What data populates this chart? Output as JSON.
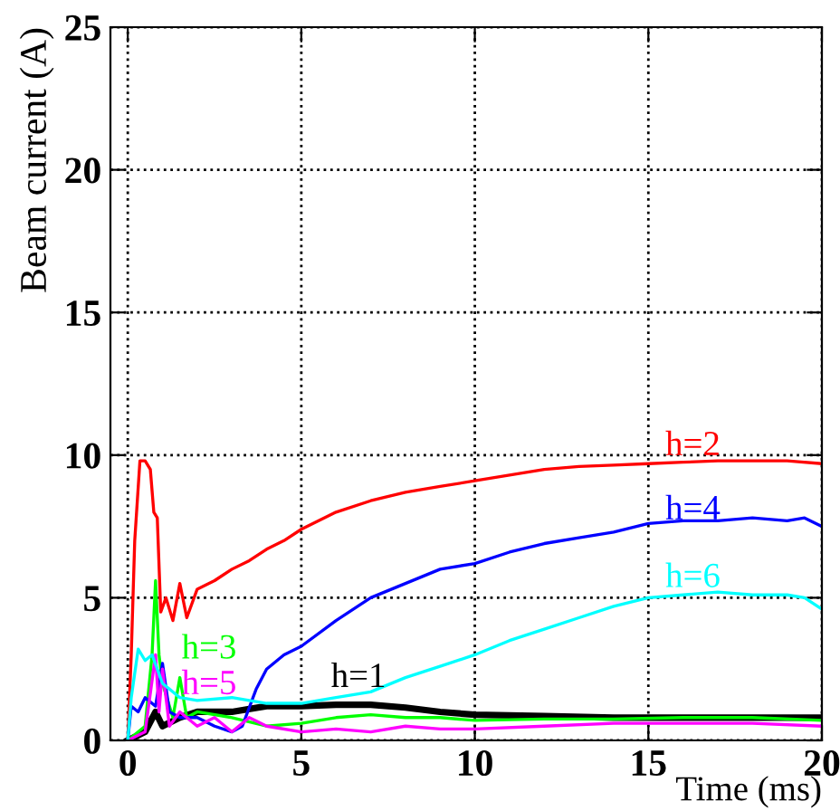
{
  "chart_data": {
    "type": "line",
    "xlabel": "Time (ms)",
    "ylabel": "Beam current (A)",
    "xlim": [
      -0.5,
      20
    ],
    "ylim": [
      0,
      25
    ],
    "xticks": [
      0,
      5,
      10,
      15,
      20
    ],
    "yticks": [
      0,
      5,
      10,
      15,
      20,
      25
    ],
    "grid": true,
    "legend": false,
    "marker": "none",
    "line_style": "solid",
    "series": [
      {
        "name": "h=1",
        "color": "#000000",
        "x": [
          0,
          0.5,
          0.8,
          1,
          1.5,
          2,
          3,
          4,
          5,
          6,
          7,
          8,
          9,
          10,
          12,
          14,
          16,
          18,
          20
        ],
        "values": [
          0,
          0.3,
          1,
          0.5,
          0.8,
          1,
          1,
          1.2,
          1.2,
          1.25,
          1.25,
          1.15,
          1,
          0.9,
          0.85,
          0.8,
          0.8,
          0.8,
          0.8
        ]
      },
      {
        "name": "h=2",
        "color": "#ff0000",
        "x": [
          0,
          0.1,
          0.2,
          0.35,
          0.5,
          0.65,
          0.75,
          0.85,
          0.95,
          1.1,
          1.3,
          1.5,
          1.7,
          2,
          2.5,
          3,
          3.5,
          4,
          4.5,
          5,
          6,
          7,
          8,
          9,
          10,
          11,
          12,
          13,
          14,
          15,
          16,
          17,
          18,
          19,
          20
        ],
        "values": [
          0,
          3,
          7,
          9.8,
          9.8,
          9.5,
          8,
          7.8,
          4.5,
          5,
          4.2,
          5.5,
          4.3,
          5.3,
          5.6,
          6,
          6.3,
          6.7,
          7,
          7.4,
          8,
          8.4,
          8.7,
          8.9,
          9.1,
          9.3,
          9.5,
          9.6,
          9.65,
          9.7,
          9.75,
          9.8,
          9.8,
          9.8,
          9.7
        ]
      },
      {
        "name": "h=3",
        "color": "#00ff00",
        "x": [
          0,
          0.5,
          0.7,
          0.8,
          0.9,
          1,
          1.3,
          1.5,
          1.7,
          2,
          3,
          4,
          5,
          6,
          7,
          8,
          9,
          10,
          12,
          14,
          16,
          18,
          20
        ],
        "values": [
          0,
          0.5,
          3,
          5.6,
          3,
          2,
          0.8,
          2.2,
          0.8,
          1,
          0.8,
          0.5,
          0.6,
          0.8,
          0.9,
          0.8,
          0.8,
          0.7,
          0.75,
          0.75,
          0.8,
          0.8,
          0.7
        ]
      },
      {
        "name": "h=4",
        "color": "#0000ff",
        "x": [
          0,
          0.1,
          0.3,
          0.5,
          0.8,
          1,
          1.2,
          1.5,
          2,
          2.5,
          3,
          3.3,
          3.7,
          4,
          4.5,
          5,
          6,
          7,
          8,
          9,
          10,
          11,
          12,
          13,
          14,
          15,
          16,
          17,
          18,
          19,
          19.5,
          20
        ],
        "values": [
          0,
          1.2,
          1,
          1.5,
          1.2,
          2.7,
          1,
          0.8,
          0.8,
          0.5,
          0.3,
          0.5,
          1.8,
          2.5,
          3,
          3.3,
          4.2,
          5,
          5.5,
          6,
          6.2,
          6.6,
          6.9,
          7.1,
          7.3,
          7.6,
          7.7,
          7.7,
          7.8,
          7.7,
          7.8,
          7.5
        ]
      },
      {
        "name": "h=5",
        "color": "#ff00ff",
        "x": [
          0,
          0.5,
          0.8,
          0.9,
          1,
          1.2,
          1.5,
          2,
          2.5,
          3,
          3.5,
          4,
          5,
          6,
          7,
          8,
          9,
          10,
          12,
          14,
          16,
          18,
          20
        ],
        "values": [
          0,
          0.3,
          3,
          1,
          2.5,
          0.5,
          1,
          0.5,
          0.8,
          0.3,
          0.8,
          0.5,
          0.3,
          0.4,
          0.3,
          0.5,
          0.4,
          0.4,
          0.5,
          0.6,
          0.6,
          0.6,
          0.5
        ]
      },
      {
        "name": "h=6",
        "color": "#00ffff",
        "x": [
          0,
          0.1,
          0.3,
          0.5,
          0.7,
          1,
          1.5,
          2,
          3,
          4,
          5,
          6,
          7,
          8,
          9,
          10,
          11,
          12,
          13,
          14,
          15,
          16,
          17,
          18,
          19,
          19.5,
          20
        ],
        "values": [
          0,
          1.5,
          3.2,
          2.8,
          3,
          2,
          1.5,
          1.4,
          1.5,
          1.3,
          1.3,
          1.5,
          1.7,
          2.2,
          2.6,
          3,
          3.5,
          3.9,
          4.3,
          4.7,
          5,
          5.1,
          5.2,
          5.1,
          5.1,
          5,
          4.6
        ]
      }
    ]
  }
}
